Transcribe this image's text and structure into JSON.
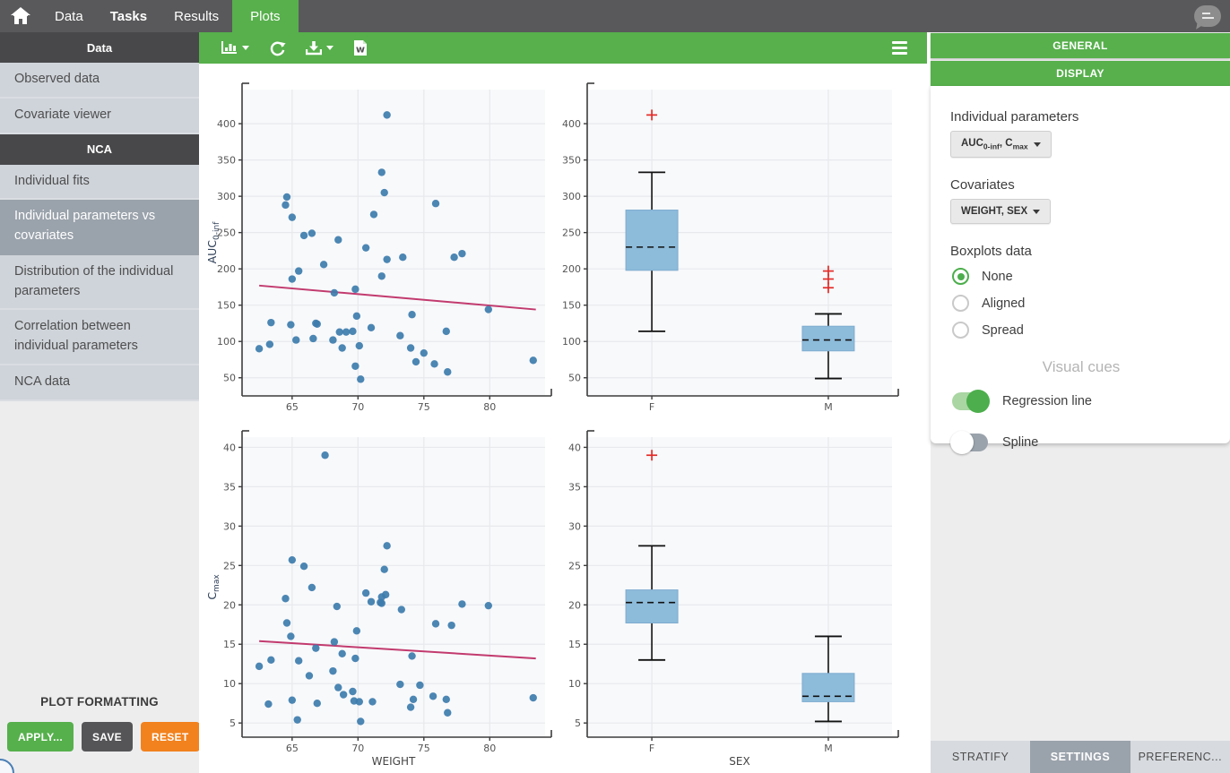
{
  "topbar": {
    "nav": [
      {
        "label": "Data",
        "bold": false,
        "active": false
      },
      {
        "label": "Tasks",
        "bold": true,
        "active": false
      },
      {
        "label": "Results",
        "bold": false,
        "active": false
      },
      {
        "label": "Plots",
        "bold": false,
        "active": true
      }
    ]
  },
  "sidebar": {
    "sections": [
      {
        "header": "Data",
        "items": [
          {
            "label": "Observed data",
            "selected": false
          },
          {
            "label": "Covariate viewer",
            "selected": false
          }
        ]
      },
      {
        "header": "NCA",
        "items": [
          {
            "label": "Individual fits",
            "selected": false
          },
          {
            "label": "Individual parameters vs covariates",
            "selected": true
          },
          {
            "label": "Distribution of the individual parameters",
            "selected": false
          },
          {
            "label": "Correlation between individual parameters",
            "selected": false
          },
          {
            "label": "NCA data",
            "selected": false
          }
        ]
      }
    ],
    "plot_formatting": {
      "title": "PLOT FORMATTING",
      "buttons": [
        {
          "label": "APPLY..."
        },
        {
          "label": "SAVE"
        },
        {
          "label": "RESET"
        }
      ]
    }
  },
  "toolbar": {
    "icons": [
      "chart-type-icon",
      "refresh-icon",
      "download-icon",
      "export-word-icon",
      "menu-icon"
    ]
  },
  "settings_panel": {
    "general_header": "GENERAL",
    "display_header": "DISPLAY",
    "individual_parameters": {
      "label": "Individual parameters",
      "value_parts": [
        {
          "t": "AUC"
        },
        {
          "s": "0-inf"
        },
        {
          "t": ", C"
        },
        {
          "s": "max"
        }
      ]
    },
    "covariates": {
      "label": "Covariates",
      "value": "WEIGHT, SEX"
    },
    "boxplots": {
      "label": "Boxplots data",
      "options": [
        {
          "label": "None",
          "selected": true
        },
        {
          "label": "Aligned",
          "selected": false
        },
        {
          "label": "Spread",
          "selected": false
        }
      ]
    },
    "visual_cues": {
      "title": "Visual cues",
      "toggles": [
        {
          "label": "Regression line",
          "on": true
        },
        {
          "label": "Spline",
          "on": false
        }
      ]
    },
    "tabs": [
      {
        "label": "STRATIFY",
        "active": false
      },
      {
        "label": "SETTINGS",
        "active": true
      },
      {
        "label": "PREFERENC...",
        "active": false
      }
    ]
  },
  "colors": {
    "accent_green": "#57b04c",
    "topbar_dark": "#59595b",
    "sidebar_bg": "#cfd4da",
    "sidebar_selected": "#9aa2ab",
    "panel_bg": "#ededee",
    "tab_active": "#9aa2ab",
    "tab_inactive": "#d7dade",
    "button_orange": "#f2821e",
    "button_dark": "#555557",
    "point_blue": "#3d7cad",
    "box_fill": "#8dbbda",
    "regression_pink": "#c23a6e",
    "outlier_red": "#e32b28",
    "plot_bg": "#f8f9fb",
    "grid": "#e7e9ec"
  },
  "chart_data": [
    {
      "type": "scatter",
      "title": "",
      "xlabel": "",
      "ylabel_parts": [
        {
          "t": "AUC"
        },
        {
          "s": "0-inf"
        }
      ],
      "xlim": [
        61.2,
        84.2
      ],
      "ylim": [
        25,
        447
      ],
      "xticks": [
        65,
        70,
        75,
        80
      ],
      "yticks": [
        50,
        100,
        150,
        200,
        250,
        300,
        350,
        400
      ],
      "grid": true,
      "points": [
        [
          62.5,
          90
        ],
        [
          63.3,
          96
        ],
        [
          63.4,
          126
        ],
        [
          64.5,
          288
        ],
        [
          64.6,
          299
        ],
        [
          65.0,
          271
        ],
        [
          64.9,
          123
        ],
        [
          65.0,
          186
        ],
        [
          65.3,
          102
        ],
        [
          65.5,
          197
        ],
        [
          65.9,
          246
        ],
        [
          66.5,
          249
        ],
        [
          66.6,
          104
        ],
        [
          66.8,
          125
        ],
        [
          66.9,
          124
        ],
        [
          67.4,
          206
        ],
        [
          68.1,
          102
        ],
        [
          68.2,
          167
        ],
        [
          68.5,
          240
        ],
        [
          68.6,
          113
        ],
        [
          68.8,
          91
        ],
        [
          69.1,
          113
        ],
        [
          69.6,
          114
        ],
        [
          69.8,
          172
        ],
        [
          69.8,
          66
        ],
        [
          70.1,
          94
        ],
        [
          70.2,
          48
        ],
        [
          69.9,
          135
        ],
        [
          70.6,
          229
        ],
        [
          71.0,
          119
        ],
        [
          71.2,
          275
        ],
        [
          71.8,
          333
        ],
        [
          71.8,
          190
        ],
        [
          72.0,
          305
        ],
        [
          72.2,
          412
        ],
        [
          72.2,
          213
        ],
        [
          73.2,
          108
        ],
        [
          73.4,
          216
        ],
        [
          74.0,
          91
        ],
        [
          74.1,
          137
        ],
        [
          74.4,
          72
        ],
        [
          75.0,
          84
        ],
        [
          75.8,
          69
        ],
        [
          75.9,
          290
        ],
        [
          76.7,
          114
        ],
        [
          76.8,
          58
        ],
        [
          77.3,
          216
        ],
        [
          77.9,
          221
        ],
        [
          79.9,
          144
        ],
        [
          83.3,
          74
        ]
      ],
      "regression": {
        "x1": 62.5,
        "y1": 177,
        "x2": 83.5,
        "y2": 144
      }
    },
    {
      "type": "box",
      "title": "",
      "xlabel": "",
      "ylabel_parts": [],
      "categories": [
        "F",
        "M"
      ],
      "cat_pos": [
        0.212,
        0.791
      ],
      "ylim": [
        25,
        447
      ],
      "yticks": [
        50,
        100,
        150,
        200,
        250,
        300,
        350,
        400
      ],
      "grid": true,
      "boxes": [
        {
          "q1": 198,
          "median": 230,
          "q3": 281,
          "whisker_low": 114,
          "whisker_high": 333,
          "outliers": [
            412
          ]
        },
        {
          "q1": 87,
          "median": 102,
          "q3": 121,
          "whisker_low": 49,
          "whisker_high": 138,
          "outliers": [
            174,
            186,
            197
          ]
        }
      ]
    },
    {
      "type": "scatter",
      "title": "",
      "xlabel": "WEIGHT",
      "ylabel_parts": [
        {
          "t": "C"
        },
        {
          "s": "max"
        }
      ],
      "xlim": [
        61.2,
        84.2
      ],
      "ylim": [
        3.2,
        41.3
      ],
      "xticks": [
        65,
        70,
        75,
        80
      ],
      "yticks": [
        5,
        10,
        15,
        20,
        25,
        30,
        35,
        40
      ],
      "grid": true,
      "points": [
        [
          62.5,
          12.2
        ],
        [
          63.2,
          7.4
        ],
        [
          63.4,
          13.0
        ],
        [
          64.5,
          20.8
        ],
        [
          64.6,
          17.7
        ],
        [
          65.0,
          25.7
        ],
        [
          64.9,
          16.0
        ],
        [
          65.0,
          7.9
        ],
        [
          65.4,
          5.4
        ],
        [
          65.5,
          12.9
        ],
        [
          65.9,
          24.9
        ],
        [
          66.5,
          22.2
        ],
        [
          66.3,
          11.0
        ],
        [
          66.9,
          7.5
        ],
        [
          66.8,
          14.5
        ],
        [
          67.5,
          39.0
        ],
        [
          68.1,
          11.6
        ],
        [
          68.2,
          15.3
        ],
        [
          68.4,
          19.8
        ],
        [
          68.5,
          9.5
        ],
        [
          68.8,
          13.8
        ],
        [
          68.9,
          8.6
        ],
        [
          69.6,
          9.0
        ],
        [
          69.7,
          7.8
        ],
        [
          69.8,
          13.2
        ],
        [
          69.9,
          16.7
        ],
        [
          70.1,
          7.7
        ],
        [
          70.2,
          5.2
        ],
        [
          70.6,
          21.5
        ],
        [
          71.0,
          20.4
        ],
        [
          71.1,
          7.7
        ],
        [
          71.7,
          20.3
        ],
        [
          71.8,
          21.0
        ],
        [
          71.8,
          20.2
        ],
        [
          72.1,
          21.3
        ],
        [
          72.0,
          24.5
        ],
        [
          72.2,
          27.5
        ],
        [
          73.2,
          9.9
        ],
        [
          73.3,
          19.4
        ],
        [
          74.0,
          7.0
        ],
        [
          74.1,
          13.5
        ],
        [
          74.2,
          8.0
        ],
        [
          74.7,
          9.8
        ],
        [
          75.7,
          8.4
        ],
        [
          75.9,
          17.6
        ],
        [
          76.7,
          8.0
        ],
        [
          76.8,
          6.3
        ],
        [
          77.1,
          17.4
        ],
        [
          77.9,
          20.1
        ],
        [
          79.9,
          19.9
        ],
        [
          83.3,
          8.2
        ]
      ],
      "regression": {
        "x1": 62.5,
        "y1": 15.4,
        "x2": 83.5,
        "y2": 13.2
      }
    },
    {
      "type": "box",
      "title": "",
      "xlabel": "SEX",
      "ylabel_parts": [],
      "categories": [
        "F",
        "M"
      ],
      "cat_pos": [
        0.212,
        0.791
      ],
      "ylim": [
        3.2,
        41.3
      ],
      "yticks": [
        5,
        10,
        15,
        20,
        25,
        30,
        35,
        40
      ],
      "grid": true,
      "boxes": [
        {
          "q1": 17.7,
          "median": 20.3,
          "q3": 21.9,
          "whisker_low": 13.0,
          "whisker_high": 27.5,
          "outliers": [
            39.0
          ]
        },
        {
          "q1": 7.7,
          "median": 8.4,
          "q3": 11.3,
          "whisker_low": 5.2,
          "whisker_high": 16.0,
          "outliers": []
        }
      ]
    }
  ]
}
